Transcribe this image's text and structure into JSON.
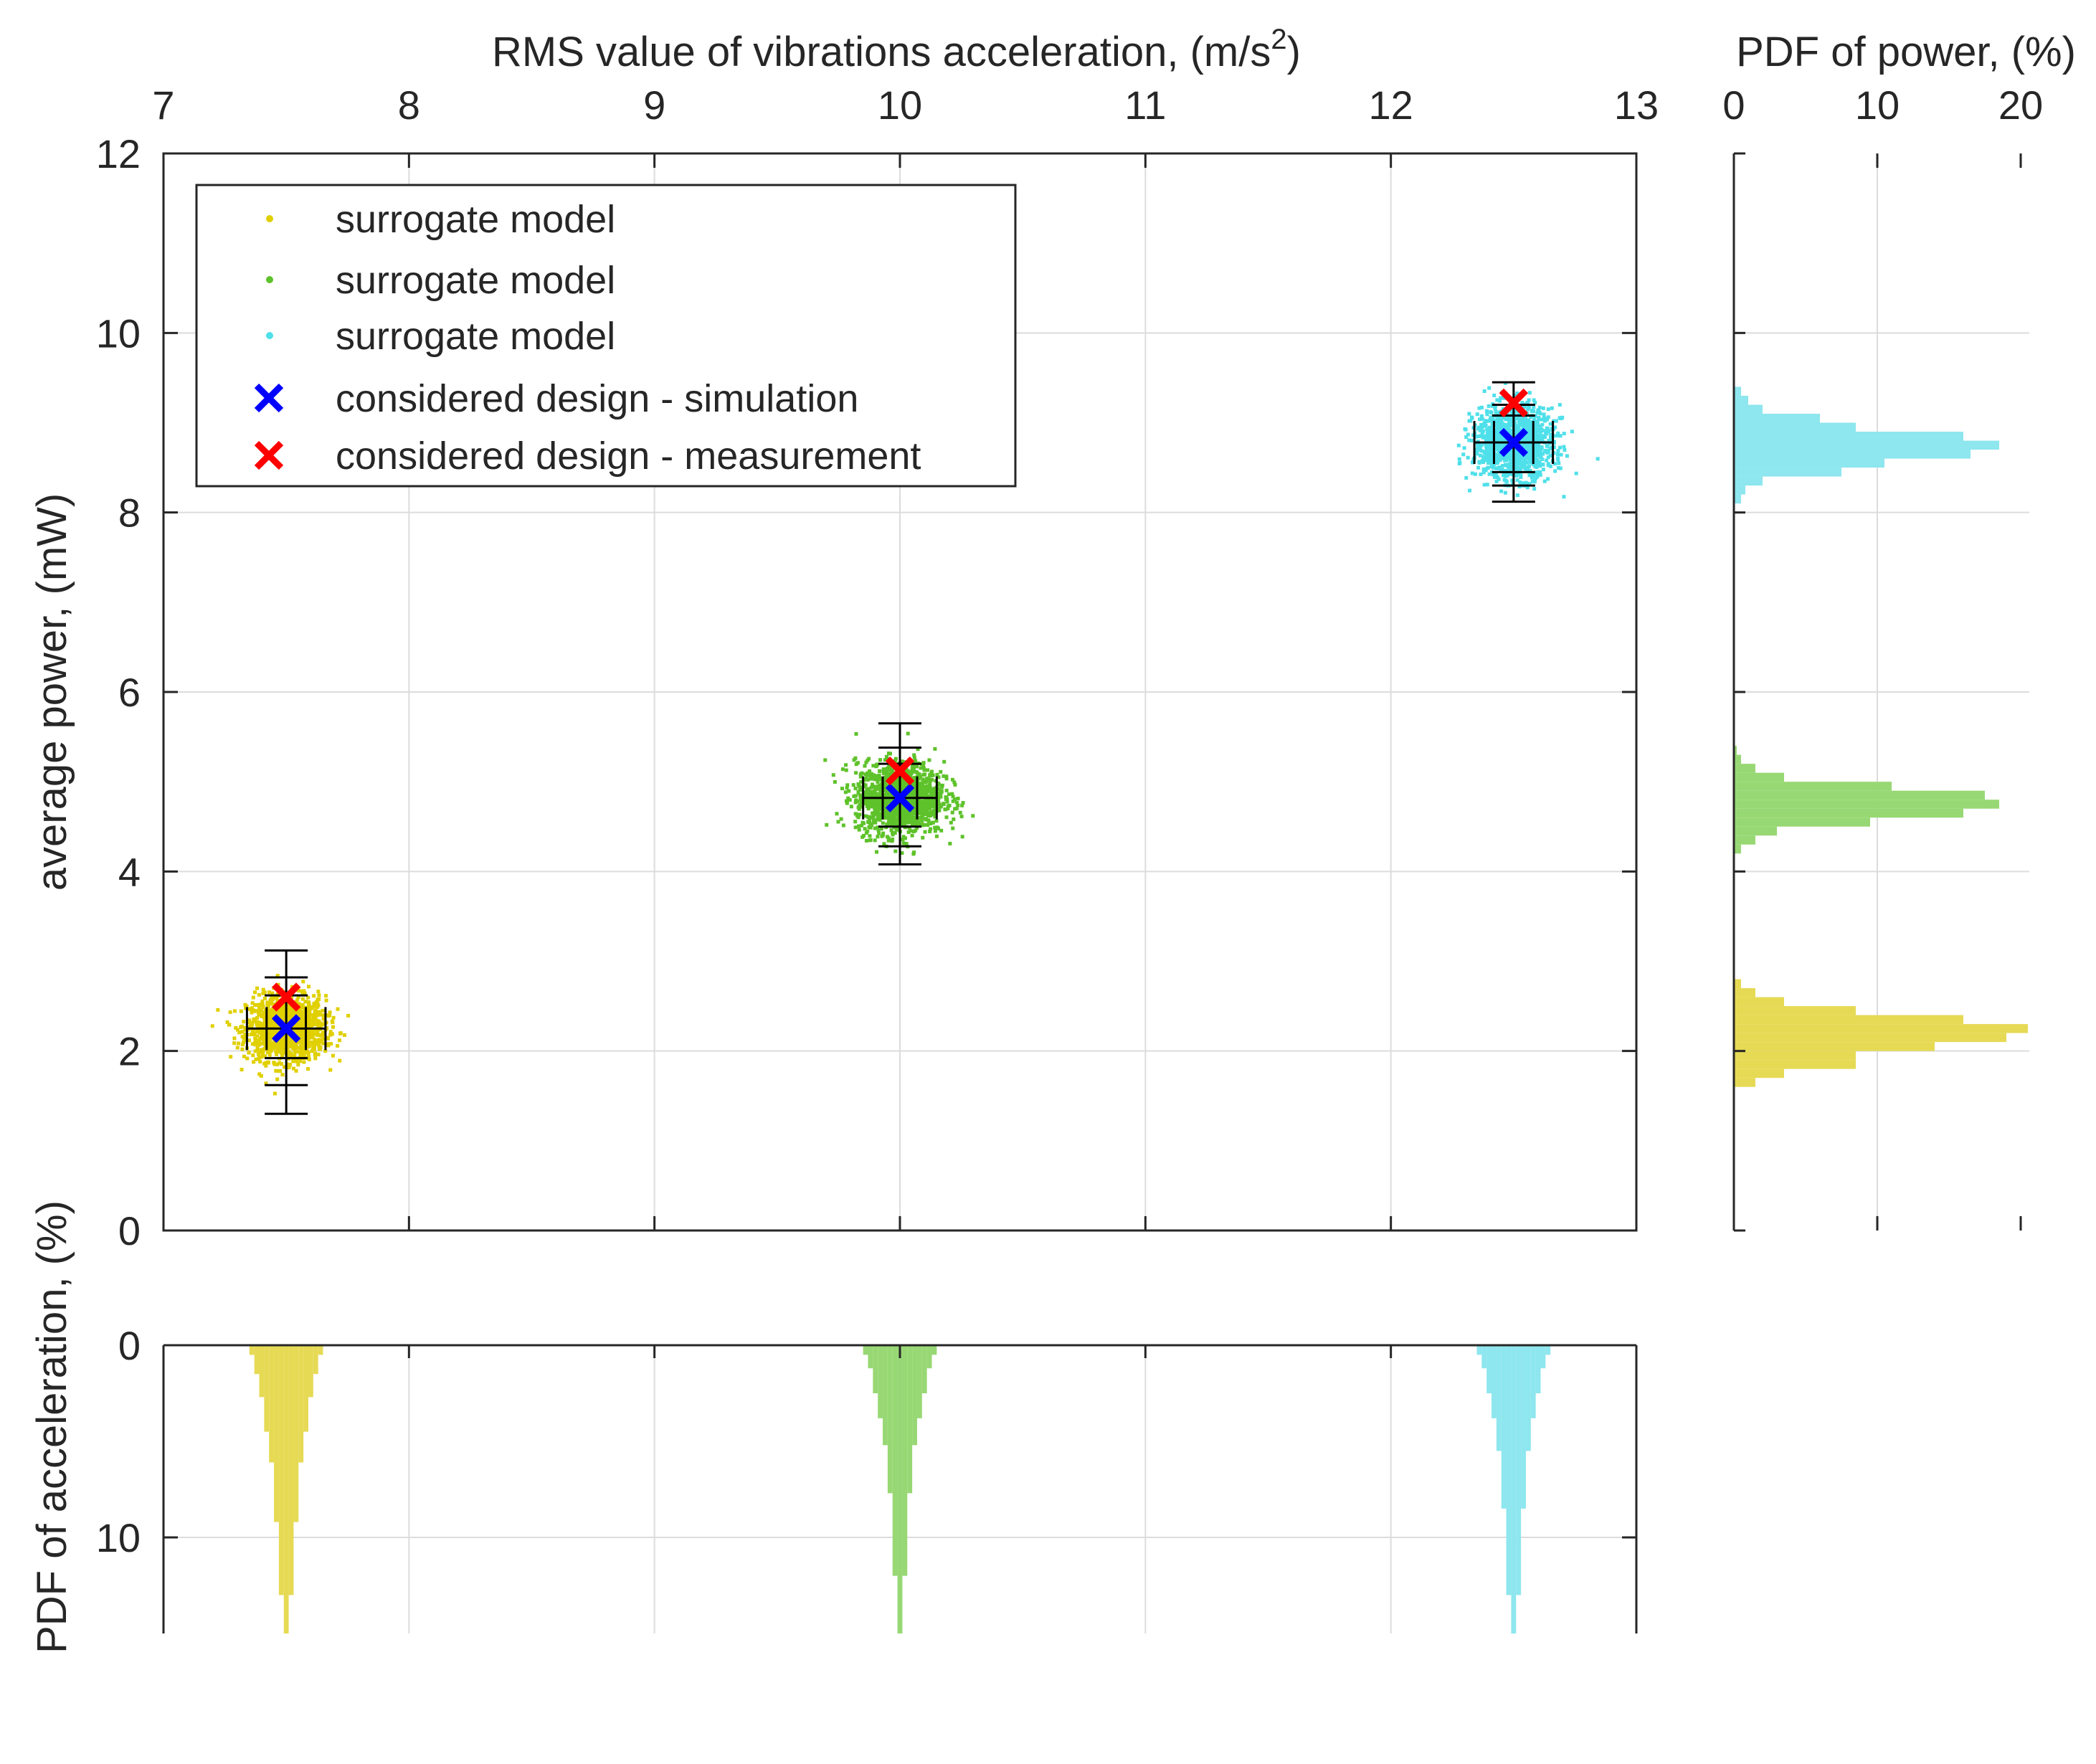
{
  "colors": {
    "yellow": "#e0d000",
    "green": "#5ec22a",
    "cyan": "#4fe0ea",
    "yellow_hist": "#e6da55",
    "green_hist": "#98d874",
    "cyan_hist": "#8ee6ee",
    "simulation": "#0000ff",
    "measurement": "#ff0000",
    "errorbar": "#000000",
    "axis": "#262626",
    "grid": "#dcdcdc"
  },
  "chart_data": [
    {
      "id": "main",
      "type": "scatter",
      "xlabel": "RMS value of vibrations acceleration, (m/s",
      "xlabel_sup": "2",
      "xlabel_end": ")",
      "ylabel": "average power, (mW)",
      "xlim": [
        7,
        13
      ],
      "ylim": [
        0,
        12
      ],
      "xticks": [
        "7",
        "8",
        "9",
        "10",
        "11",
        "12",
        "13"
      ],
      "yticks": [
        "0",
        "2",
        "4",
        "6",
        "8",
        "10",
        "12"
      ],
      "grid": true,
      "legend_position": "top-left",
      "legend": [
        {
          "label": "surrogate model",
          "marker": "dot",
          "color": "yellow"
        },
        {
          "label": "surrogate model",
          "marker": "dot",
          "color": "green"
        },
        {
          "label": "surrogate model",
          "marker": "dot",
          "color": "cyan"
        },
        {
          "label": "considered design - simulation",
          "marker": "x",
          "color": "simulation"
        },
        {
          "label": "considered design - measurement",
          "marker": "x",
          "color": "measurement"
        }
      ],
      "clusters": [
        {
          "color": "yellow",
          "cx": 7.5,
          "cy": 2.25,
          "sx": 0.08,
          "sy": 0.18
        },
        {
          "color": "green",
          "cx": 10.0,
          "cy": 4.82,
          "sx": 0.09,
          "sy": 0.2
        },
        {
          "color": "cyan",
          "cx": 12.5,
          "cy": 8.78,
          "sx": 0.08,
          "sy": 0.2
        }
      ],
      "simulation_points": [
        {
          "x": 7.5,
          "y": 2.25,
          "y_err_inner": [
            1.92,
            2.62
          ],
          "y_err_outer": [
            1.3,
            3.12
          ],
          "x_err": [
            7.34,
            7.66
          ],
          "x_err_inner": [
            7.42,
            7.58
          ],
          "y_err_mid": [
            1.62,
            2.82
          ]
        },
        {
          "x": 10.0,
          "y": 4.82,
          "y_err_inner": [
            4.5,
            5.2
          ],
          "y_err_outer": [
            4.08,
            5.65
          ],
          "x_err": [
            9.85,
            10.15
          ],
          "x_err_inner": [
            9.93,
            10.07
          ],
          "y_err_mid": [
            4.28,
            5.38
          ]
        },
        {
          "x": 12.5,
          "y": 8.78,
          "y_err_inner": [
            8.45,
            9.08
          ],
          "y_err_outer": [
            8.12,
            9.45
          ],
          "x_err": [
            12.34,
            12.66
          ],
          "x_err_inner": [
            12.42,
            12.58
          ],
          "y_err_mid": [
            8.3,
            9.2
          ]
        }
      ],
      "measurement_points": [
        {
          "x": 7.5,
          "y": 2.6
        },
        {
          "x": 10.0,
          "y": 5.12
        },
        {
          "x": 12.5,
          "y": 9.22
        }
      ]
    },
    {
      "id": "power_pdf",
      "type": "bar",
      "orientation": "horizontal",
      "xlabel": "PDF of power, (%)",
      "xlim": [
        0,
        20
      ],
      "xticks": [
        "0",
        "10",
        "20"
      ],
      "ylim": [
        0,
        12
      ],
      "grid": true,
      "bin_width": 0.1,
      "series": [
        {
          "color": "yellow_hist",
          "bins": [
            [
              1.6,
              1.5
            ],
            [
              1.7,
              3.5
            ],
            [
              1.8,
              8.5
            ],
            [
              1.9,
              8.5
            ],
            [
              2.0,
              14.0
            ],
            [
              2.1,
              19.0
            ],
            [
              2.2,
              20.5
            ],
            [
              2.3,
              16.0
            ],
            [
              2.4,
              8.5
            ],
            [
              2.5,
              3.5
            ],
            [
              2.6,
              1.5
            ],
            [
              2.7,
              0.5
            ]
          ]
        },
        {
          "color": "green_hist",
          "bins": [
            [
              4.2,
              0.5
            ],
            [
              4.3,
              1.5
            ],
            [
              4.4,
              3.0
            ],
            [
              4.5,
              9.5
            ],
            [
              4.6,
              16.0
            ],
            [
              4.7,
              18.5
            ],
            [
              4.8,
              17.5
            ],
            [
              4.9,
              11.0
            ],
            [
              5.0,
              3.5
            ],
            [
              5.1,
              1.5
            ],
            [
              5.2,
              0.5
            ],
            [
              5.3,
              0.2
            ]
          ]
        },
        {
          "color": "cyan_hist",
          "bins": [
            [
              8.1,
              0.5
            ],
            [
              8.2,
              0.8
            ],
            [
              8.3,
              2.0
            ],
            [
              8.4,
              7.5
            ],
            [
              8.5,
              10.5
            ],
            [
              8.6,
              16.5
            ],
            [
              8.7,
              18.5
            ],
            [
              8.8,
              16.0
            ],
            [
              8.9,
              8.5
            ],
            [
              9.0,
              6.0
            ],
            [
              9.1,
              2.0
            ],
            [
              9.2,
              1.0
            ],
            [
              9.3,
              0.5
            ]
          ]
        }
      ]
    },
    {
      "id": "accel_pdf",
      "type": "bar",
      "orientation": "vertical-down",
      "ylabel": "PDF of acceleration, (%)",
      "xlim": [
        7,
        13
      ],
      "ylim": [
        0,
        15
      ],
      "yticks": [
        "0",
        "10"
      ],
      "grid": true,
      "bin_width": 0.02,
      "series": [
        {
          "color": "yellow_hist",
          "bins": [
            [
              7.35,
              0.5
            ],
            [
              7.37,
              1.5
            ],
            [
              7.39,
              2.7
            ],
            [
              7.41,
              4.5
            ],
            [
              7.43,
              6.1
            ],
            [
              7.45,
              9.2
            ],
            [
              7.47,
              13.0
            ],
            [
              7.49,
              15.5
            ],
            [
              7.51,
              13.0
            ],
            [
              7.53,
              9.2
            ],
            [
              7.55,
              6.1
            ],
            [
              7.57,
              4.5
            ],
            [
              7.59,
              2.7
            ],
            [
              7.61,
              1.5
            ],
            [
              7.63,
              0.5
            ]
          ]
        },
        {
          "color": "green_hist",
          "bins": [
            [
              9.85,
              0.5
            ],
            [
              9.87,
              1.2
            ],
            [
              9.89,
              2.5
            ],
            [
              9.91,
              3.8
            ],
            [
              9.93,
              5.2
            ],
            [
              9.95,
              7.7
            ],
            [
              9.97,
              12.0
            ],
            [
              9.99,
              15.5
            ],
            [
              10.01,
              12.0
            ],
            [
              10.03,
              7.7
            ],
            [
              10.05,
              5.2
            ],
            [
              10.07,
              3.8
            ],
            [
              10.09,
              2.5
            ],
            [
              10.11,
              1.2
            ],
            [
              10.13,
              0.5
            ]
          ]
        },
        {
          "color": "cyan_hist",
          "bins": [
            [
              12.35,
              0.5
            ],
            [
              12.37,
              1.2
            ],
            [
              12.39,
              2.5
            ],
            [
              12.41,
              3.8
            ],
            [
              12.43,
              5.5
            ],
            [
              12.45,
              8.5
            ],
            [
              12.47,
              13.0
            ],
            [
              12.49,
              15.5
            ],
            [
              12.51,
              13.0
            ],
            [
              12.53,
              8.5
            ],
            [
              12.55,
              5.5
            ],
            [
              12.57,
              3.8
            ],
            [
              12.59,
              2.5
            ],
            [
              12.61,
              1.2
            ],
            [
              12.63,
              0.5
            ]
          ]
        }
      ]
    }
  ]
}
